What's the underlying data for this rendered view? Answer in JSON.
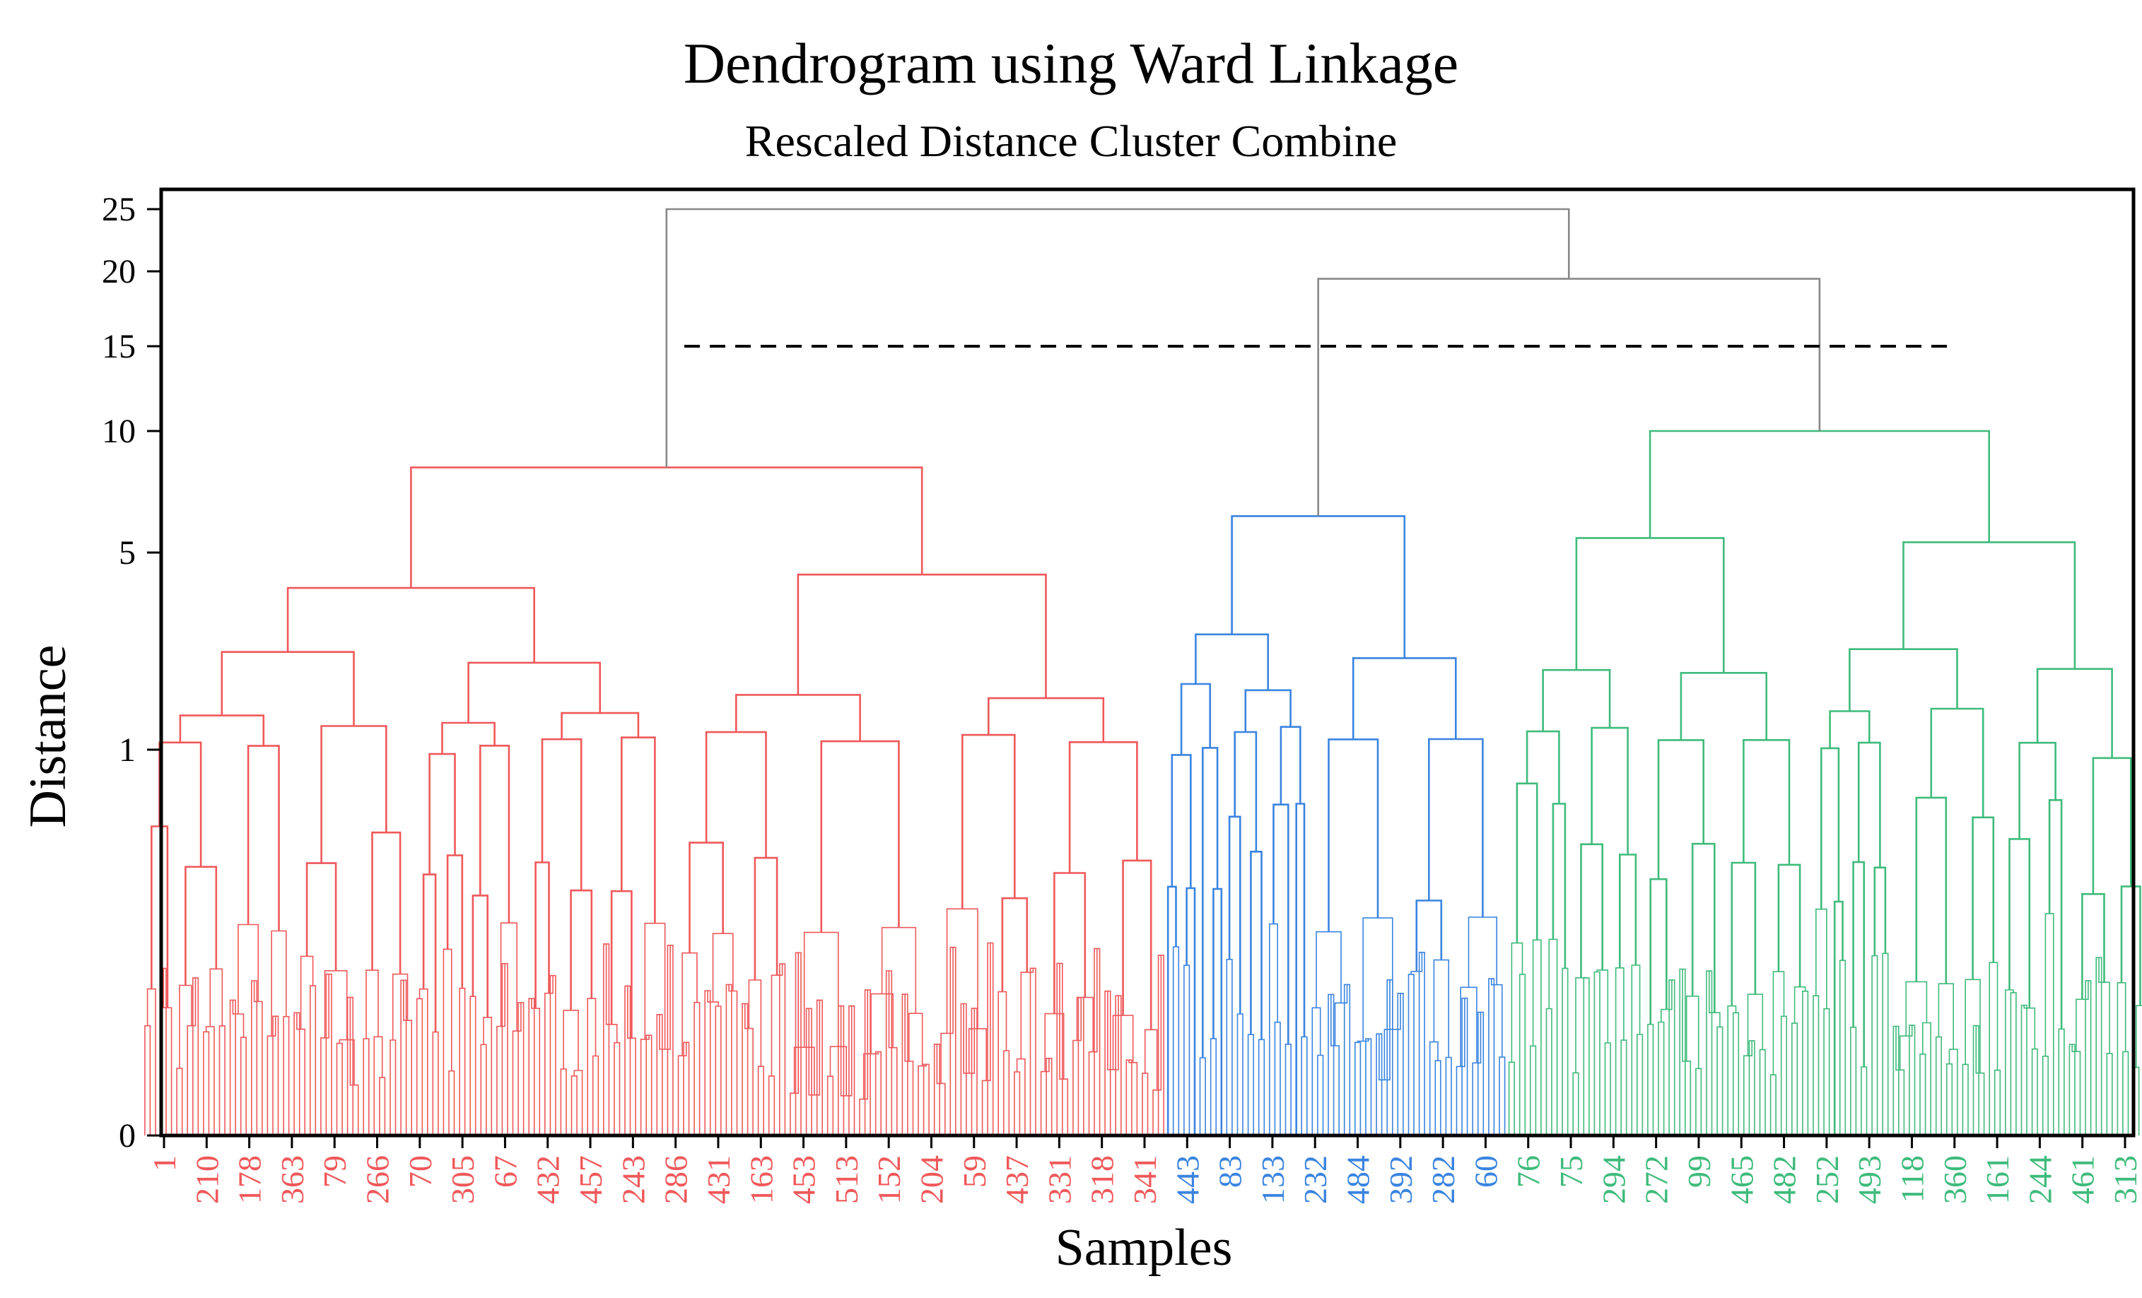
{
  "chart_data": {
    "type": "dendrogram",
    "title": "Dendrogram using Ward Linkage",
    "subtitle": "Rescaled Distance Cluster Combine",
    "xlabel": "Samples",
    "ylabel": "Distance",
    "y_ticks": [
      "0",
      "1",
      "5",
      "10",
      "15",
      "20",
      "25"
    ],
    "cut_line_distance": 15,
    "clusters": [
      {
        "name": "cluster-red",
        "color": "#f0585a",
        "tick_labels": [
          "1",
          "210",
          "178",
          "363",
          "79",
          "266",
          "70",
          "305",
          "67",
          "432",
          "457",
          "243",
          "286",
          "431",
          "163",
          "453",
          "513",
          "152",
          "204",
          "59",
          "437",
          "331",
          "318",
          "341"
        ]
      },
      {
        "name": "cluster-blue",
        "color": "#3a84e0",
        "tick_labels": [
          "443",
          "83",
          "133",
          "232",
          "484",
          "392",
          "282",
          "60"
        ]
      },
      {
        "name": "cluster-green",
        "color": "#3fbb7b",
        "tick_labels": [
          "76",
          "75",
          "294",
          "272",
          "99",
          "465",
          "482",
          "252",
          "493",
          "118",
          "360",
          "161",
          "244",
          "461",
          "313"
        ]
      }
    ],
    "merges": {
      "root": 25,
      "blue_green": 19.5,
      "red_root": 8.5,
      "blue_root": 6.5,
      "green_root": 10
    },
    "colors": {
      "upper_links": "#888888",
      "frame": "#000000",
      "cut_line": "#000000"
    }
  }
}
